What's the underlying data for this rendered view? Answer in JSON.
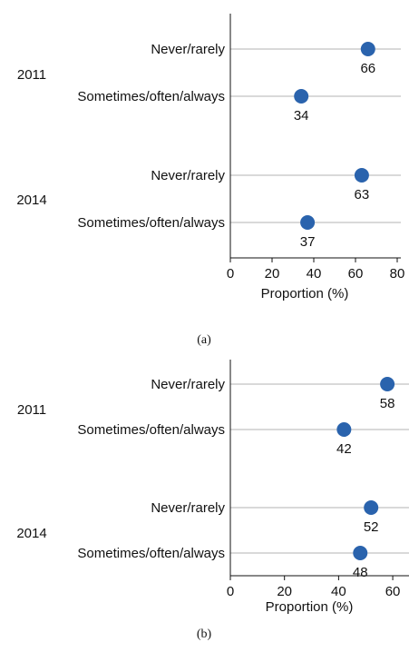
{
  "chart_data": [
    {
      "type": "scatter",
      "panel_label": "(a)",
      "xlabel": "Proportion (%)",
      "xlim": [
        0,
        80
      ],
      "xticks": [
        0,
        20,
        40,
        60,
        80
      ],
      "groups": [
        {
          "name": "2011",
          "rows": [
            {
              "category": "Never/rarely",
              "value": 66,
              "value_label": "66"
            },
            {
              "category": "Sometimes/often/always",
              "value": 34,
              "value_label": "34"
            }
          ]
        },
        {
          "name": "2014",
          "rows": [
            {
              "category": "Never/rarely",
              "value": 63,
              "value_label": "63"
            },
            {
              "category": "Sometimes/often/always",
              "value": 37,
              "value_label": "37"
            }
          ]
        }
      ],
      "grid": "horizontal lines at categories",
      "marker_color": "#2a63ad",
      "gridline_color": "#b3b3b3"
    },
    {
      "type": "scatter",
      "panel_label": "(b)",
      "xlabel": "Proportion (%)",
      "xlim": [
        0,
        65
      ],
      "xticks": [
        0,
        20,
        40,
        60
      ],
      "groups": [
        {
          "name": "2011",
          "rows": [
            {
              "category": "Never/rarely",
              "value": 58,
              "value_label": "58"
            },
            {
              "category": "Sometimes/often/always",
              "value": 42,
              "value_label": "42"
            }
          ]
        },
        {
          "name": "2014",
          "rows": [
            {
              "category": "Never/rarely",
              "value": 52,
              "value_label": "52"
            },
            {
              "category": "Sometimes/often/always",
              "value": 48,
              "value_label": "48"
            }
          ]
        }
      ],
      "grid": "horizontal lines at categories",
      "marker_color": "#2a63ad",
      "gridline_color": "#b3b3b3"
    }
  ]
}
